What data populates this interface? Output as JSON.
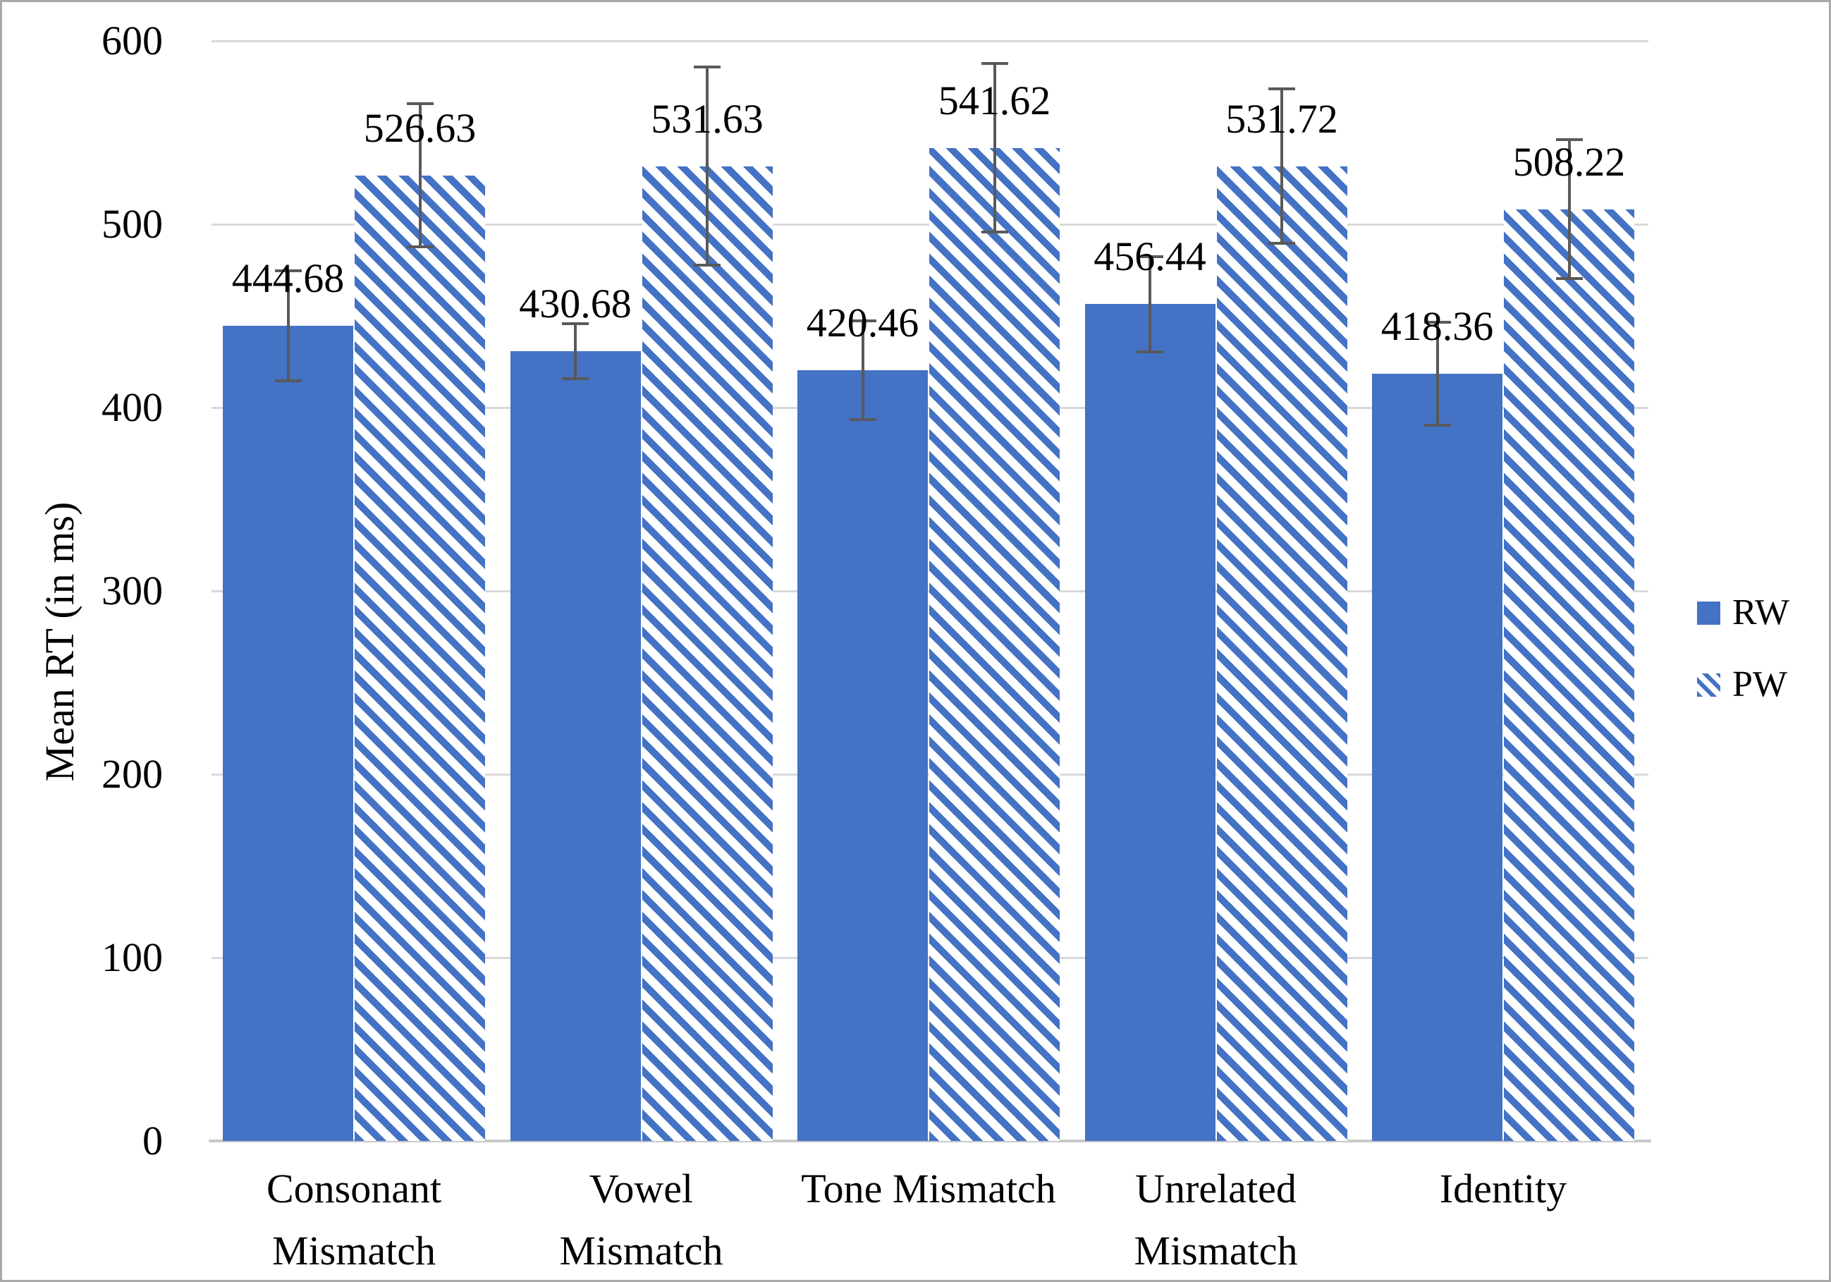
{
  "chart_data": {
    "type": "bar",
    "title": "",
    "xlabel": "",
    "ylabel": "Mean RT (in ms)",
    "ylim": [
      0,
      600
    ],
    "yticks": [
      0,
      100,
      200,
      300,
      400,
      500,
      600
    ],
    "grid": true,
    "legend_position": "middle-right",
    "data_labels_visible": true,
    "error_bars_visible": true,
    "categories": [
      {
        "label": "Consonant Mismatch",
        "lines": [
          "Consonant",
          "Mismatch"
        ]
      },
      {
        "label": "Vowel Mismatch",
        "lines": [
          "Vowel",
          "Mismatch"
        ]
      },
      {
        "label": "Tone Mismatch",
        "lines": [
          "Tone Mismatch"
        ]
      },
      {
        "label": "Unrelated Mismatch",
        "lines": [
          "Unrelated",
          "Mismatch"
        ]
      },
      {
        "label": "Identity",
        "lines": [
          "Identity"
        ]
      }
    ],
    "series": [
      {
        "name": "RW",
        "fill": "solid",
        "values": [
          444.68,
          430.68,
          420.46,
          456.44,
          418.36
        ],
        "data_labels": [
          "444.68",
          "430.68",
          "420.46",
          "456.44",
          "418.36"
        ],
        "error_bars": [
          30,
          15,
          27,
          26,
          28
        ]
      },
      {
        "name": "PW",
        "fill": "diagonal-hatch",
        "values": [
          526.63,
          531.63,
          541.62,
          531.72,
          508.22
        ],
        "data_labels": [
          "526.63",
          "531.63",
          "541.62",
          "531.72",
          "508.22"
        ],
        "error_bars": [
          39,
          54,
          46,
          42,
          38
        ]
      }
    ],
    "colors": {
      "bar_blue": "#4472C4",
      "hatch_background": "#FFFFFF",
      "gridline": "#D9D9D9",
      "axis_line": "#C9C9C9",
      "error_bar": "#595959",
      "text": "#000000",
      "frame_border": "#A9A9A9"
    }
  },
  "legend": {
    "items": [
      {
        "label": "RW",
        "swatch": "solid"
      },
      {
        "label": "PW",
        "swatch": "diagonal-hatch"
      }
    ]
  }
}
